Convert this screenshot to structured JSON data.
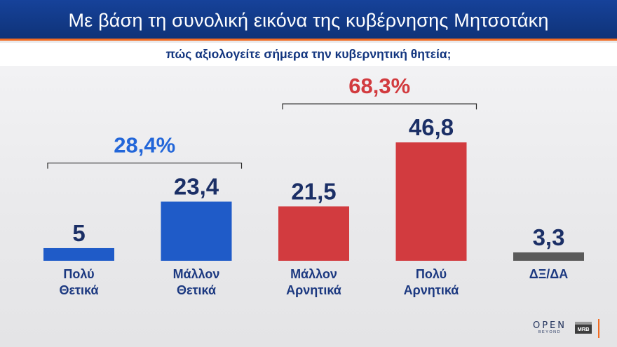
{
  "header": {
    "title": "Με βάση τη συνολική εικόνα της κυβέρνησης Μητσοτάκη"
  },
  "subheader": {
    "question": "πώς αξιολογείτε σήμερα την κυβερνητική θητεία;"
  },
  "chart_data": {
    "type": "bar",
    "categories": [
      [
        "Πολύ",
        "Θετικά"
      ],
      [
        "Μάλλον",
        "Θετικά"
      ],
      [
        "Μάλλον",
        "Αρνητικά"
      ],
      [
        "Πολύ",
        "Αρνητικά"
      ],
      [
        "ΔΞ/ΔΑ"
      ]
    ],
    "values": [
      5,
      23.4,
      21.5,
      46.8,
      3.3
    ],
    "value_labels": [
      "5",
      "23,4",
      "21,5",
      "46,8",
      "3,3"
    ],
    "colors": [
      "#1f5bc8",
      "#1f5bc8",
      "#d23b3f",
      "#d23b3f",
      "#5a5a5a"
    ],
    "groups": [
      {
        "label": "28,4%",
        "from": 0,
        "to": 1,
        "color": "#2266d9"
      },
      {
        "label": "68,3%",
        "from": 2,
        "to": 3,
        "color": "#d23b3f"
      }
    ],
    "title": "",
    "xlabel": "",
    "ylabel": ""
  },
  "colors": {
    "header_bg": "#16429a",
    "accent": "#f26b21",
    "label_text": "#1b3880",
    "value_text": "#1b2f66"
  },
  "logos": {
    "open_main": "OPEN",
    "open_sub": "BEYOND",
    "mrb": "MRB"
  }
}
